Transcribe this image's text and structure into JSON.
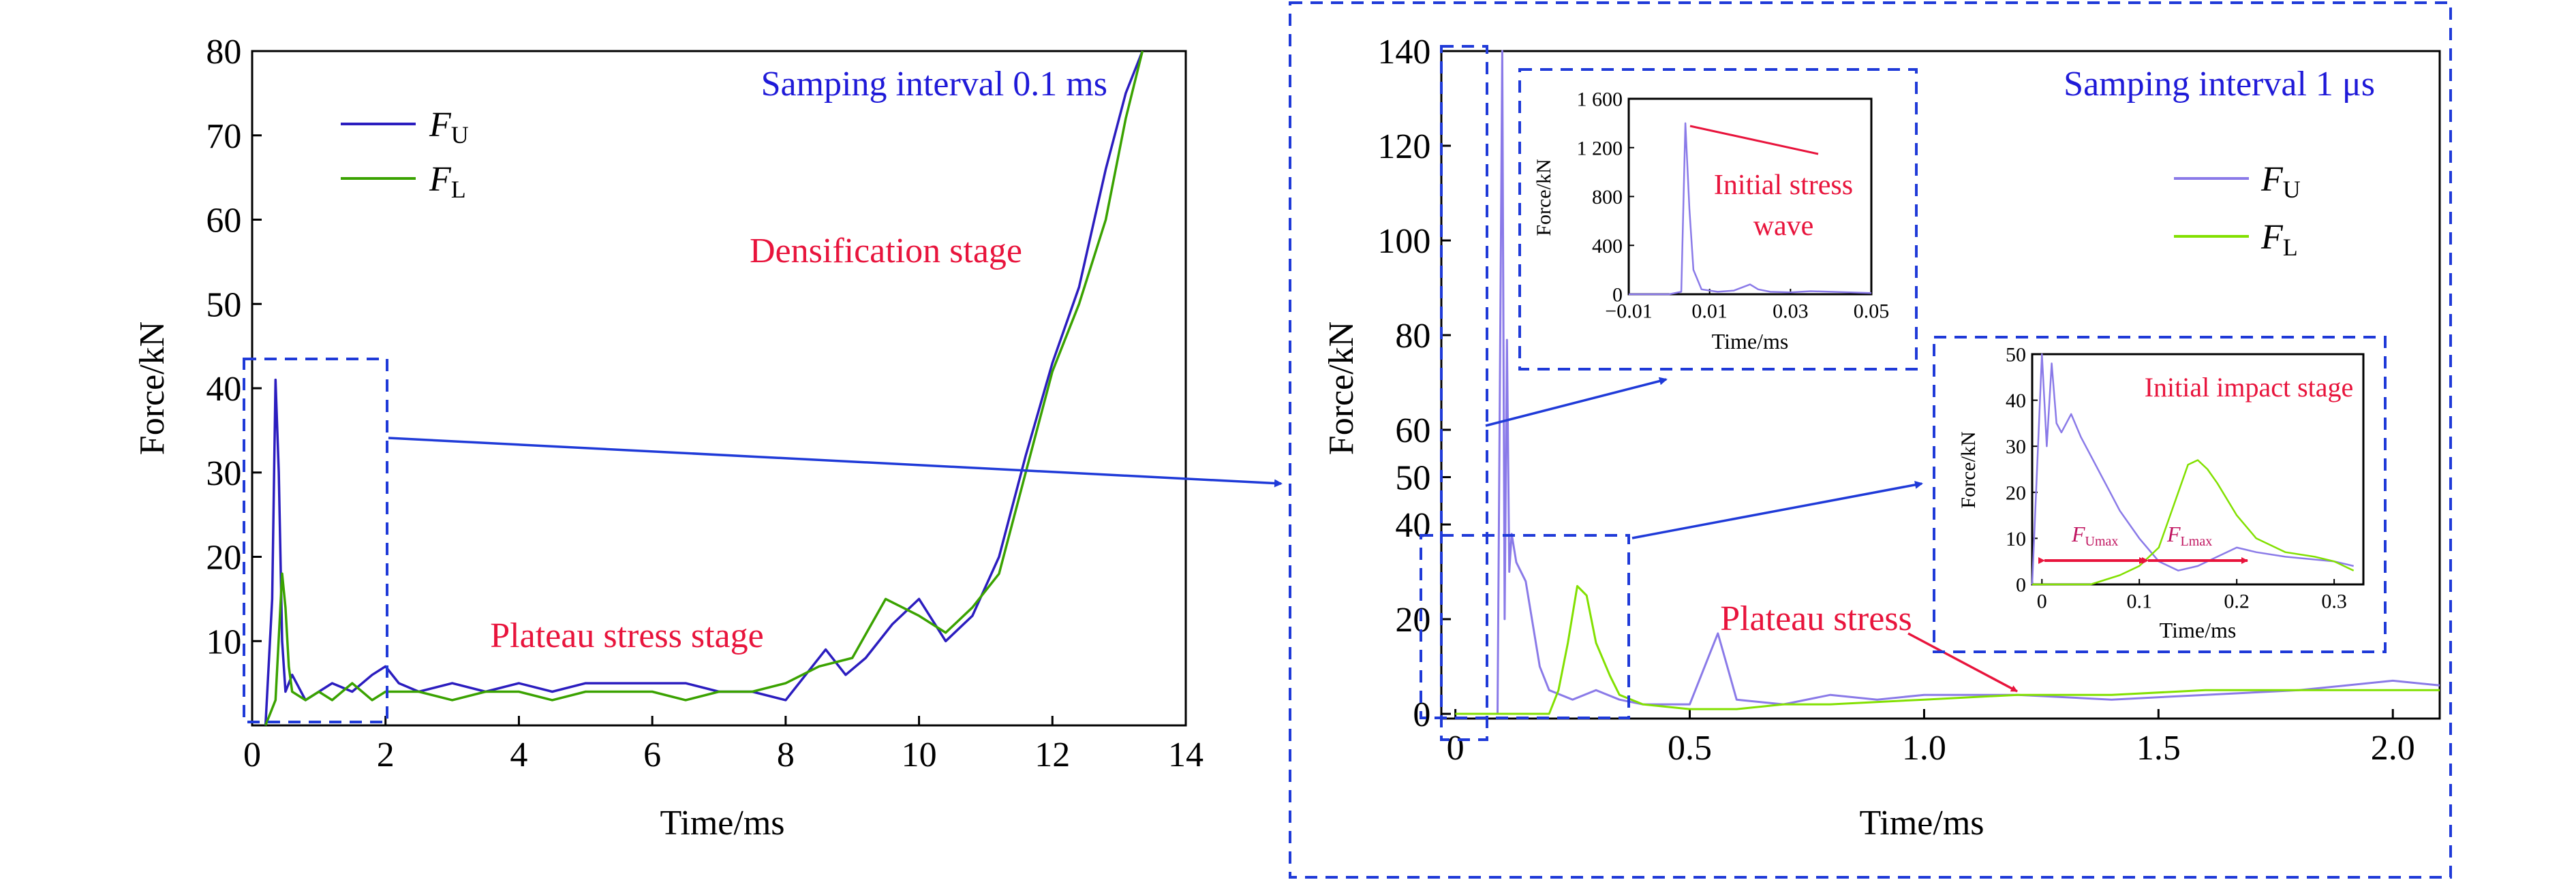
{
  "figure": {
    "arrows_color": "#1f3ad8",
    "frame_color": "#1f3ad8",
    "series_colors": {
      "upper_left": "#2b1dbf",
      "lower_left": "#3aa200",
      "upper_right": "#8a7ae8",
      "lower_right": "#82e000"
    },
    "annotation_color": "#e8143c",
    "title_color": "#1f1ad8"
  },
  "chart_data": [
    {
      "id": "left",
      "type": "line",
      "title": "Samping interval 0.1 ms",
      "xlabel": "Time/ms",
      "ylabel": "Force/kN",
      "xlim": [
        0,
        14
      ],
      "ylim": [
        0,
        80
      ],
      "xticks": [
        "0",
        "2",
        "4",
        "6",
        "8",
        "10",
        "12",
        "14"
      ],
      "yticks": [
        "10",
        "20",
        "30",
        "40",
        "50",
        "60",
        "70",
        "80"
      ],
      "legend_position": "top-left",
      "legend": [
        {
          "italic": "F",
          "sub": "U"
        },
        {
          "italic": "F",
          "sub": "L"
        }
      ],
      "annotations": [
        "Densification stage",
        "Plateau stress stage"
      ],
      "series": [
        {
          "name": "FU",
          "x": [
            0.2,
            0.3,
            0.35,
            0.4,
            0.45,
            0.5,
            0.6,
            0.8,
            1.0,
            1.2,
            1.5,
            1.8,
            2.0,
            2.2,
            2.5,
            3.0,
            3.5,
            4.0,
            4.5,
            5.0,
            5.5,
            6.0,
            6.5,
            7.0,
            7.5,
            8.0,
            8.3,
            8.6,
            8.9,
            9.2,
            9.6,
            10.0,
            10.4,
            10.8,
            11.2,
            11.6,
            12.0,
            12.4,
            12.8,
            13.1,
            13.35
          ],
          "y": [
            0,
            15,
            41,
            30,
            10,
            4,
            6,
            3,
            4,
            5,
            4,
            6,
            7,
            5,
            4,
            5,
            4,
            5,
            4,
            5,
            5,
            5,
            5,
            4,
            4,
            3,
            6,
            9,
            6,
            8,
            12,
            15,
            10,
            13,
            20,
            32,
            43,
            52,
            66,
            75,
            80
          ]
        },
        {
          "name": "FL",
          "x": [
            0.2,
            0.35,
            0.45,
            0.5,
            0.55,
            0.6,
            0.8,
            1.0,
            1.2,
            1.5,
            1.8,
            2.0,
            2.5,
            3.0,
            3.5,
            4.0,
            4.5,
            5.0,
            5.5,
            6.0,
            6.5,
            7.0,
            7.5,
            8.0,
            8.5,
            9.0,
            9.5,
            10.0,
            10.4,
            10.8,
            11.2,
            11.6,
            12.0,
            12.4,
            12.8,
            13.1,
            13.35
          ],
          "y": [
            0,
            3,
            18,
            14,
            7,
            4,
            3,
            4,
            3,
            5,
            3,
            4,
            4,
            3,
            4,
            4,
            3,
            4,
            4,
            4,
            3,
            4,
            4,
            5,
            7,
            8,
            15,
            13,
            11,
            14,
            18,
            30,
            42,
            50,
            60,
            72,
            80
          ]
        }
      ]
    },
    {
      "id": "right",
      "type": "line",
      "title": "Samping interval 1 μs",
      "xlabel": "Time/ms",
      "ylabel": "Force/kN",
      "xlim": [
        -0.03,
        2.1
      ],
      "ylim": [
        -1,
        140
      ],
      "xticks": [
        "0",
        "0.5",
        "1.0",
        "1.5",
        "2.0"
      ],
      "yticks": [
        "0",
        "20",
        "40",
        "50",
        "60",
        "80",
        "100",
        "120",
        "140"
      ],
      "legend_position": "right",
      "legend": [
        {
          "italic": "F",
          "sub": "U"
        },
        {
          "italic": "F",
          "sub": "L"
        }
      ],
      "annotations": [
        "Plateau stress"
      ],
      "series": [
        {
          "name": "FU",
          "x": [
            0,
            0.04,
            0.09,
            0.1,
            0.105,
            0.11,
            0.115,
            0.12,
            0.13,
            0.15,
            0.18,
            0.2,
            0.25,
            0.3,
            0.35,
            0.4,
            0.5,
            0.54,
            0.56,
            0.58,
            0.6,
            0.7,
            0.8,
            0.9,
            1.0,
            1.2,
            1.4,
            1.6,
            1.8,
            2.0,
            2.1
          ],
          "y": [
            0,
            0,
            0,
            140,
            20,
            79,
            30,
            38,
            32,
            28,
            10,
            5,
            3,
            5,
            3,
            2,
            2,
            12,
            17,
            10,
            3,
            2,
            4,
            3,
            4,
            4,
            3,
            4,
            5,
            7,
            6
          ]
        },
        {
          "name": "FL",
          "x": [
            0,
            0.1,
            0.2,
            0.22,
            0.24,
            0.26,
            0.28,
            0.3,
            0.33,
            0.35,
            0.4,
            0.5,
            0.6,
            0.7,
            0.8,
            1.0,
            1.2,
            1.4,
            1.6,
            1.8,
            2.0,
            2.1
          ],
          "y": [
            0,
            0,
            0,
            5,
            15,
            27,
            25,
            15,
            8,
            4,
            2,
            1,
            1,
            2,
            2,
            3,
            4,
            4,
            5,
            5,
            5,
            5
          ]
        }
      ]
    },
    {
      "id": "inset1",
      "type": "line",
      "xlabel": "Time/ms",
      "ylabel": "Force/kN",
      "xlim": [
        -0.01,
        0.05
      ],
      "ylim": [
        0,
        1600
      ],
      "xticks": [
        "−0.01",
        "0.01",
        "0.03",
        "0.05"
      ],
      "yticks": [
        "0",
        "400",
        "800",
        "1 200",
        "1 600"
      ],
      "annotations": [
        "Initial stress",
        "wave"
      ],
      "series": [
        {
          "name": "FU",
          "x": [
            -0.01,
            0.0,
            0.003,
            0.004,
            0.005,
            0.006,
            0.008,
            0.012,
            0.016,
            0.02,
            0.022,
            0.025,
            0.03,
            0.035,
            0.05
          ],
          "y": [
            0,
            0,
            20,
            1400,
            700,
            200,
            40,
            20,
            30,
            80,
            40,
            20,
            15,
            25,
            10
          ]
        }
      ]
    },
    {
      "id": "inset2",
      "type": "line",
      "xlabel": "Time/ms",
      "ylabel": "Force/kN",
      "xlim": [
        -0.01,
        0.33
      ],
      "ylim": [
        0,
        50
      ],
      "xticks": [
        "0",
        "0.1",
        "0.2",
        "0.3"
      ],
      "yticks": [
        "0",
        "10",
        "20",
        "30",
        "40",
        "50"
      ],
      "annotations": [
        "Initial impact stage"
      ],
      "labels": [
        {
          "italic": "F",
          "sub": "Umax"
        },
        {
          "italic": "F",
          "sub": "Lmax"
        }
      ],
      "series": [
        {
          "name": "FU",
          "x": [
            -0.01,
            0.0,
            0.005,
            0.01,
            0.015,
            0.02,
            0.03,
            0.04,
            0.05,
            0.06,
            0.07,
            0.08,
            0.1,
            0.12,
            0.14,
            0.16,
            0.18,
            0.2,
            0.22,
            0.25,
            0.3,
            0.32
          ],
          "y": [
            0,
            50,
            30,
            48,
            35,
            33,
            37,
            32,
            28,
            24,
            20,
            16,
            10,
            5,
            3,
            4,
            6,
            8,
            7,
            6,
            5,
            4
          ]
        },
        {
          "name": "FL",
          "x": [
            -0.01,
            0.05,
            0.08,
            0.1,
            0.12,
            0.13,
            0.14,
            0.15,
            0.16,
            0.17,
            0.18,
            0.2,
            0.22,
            0.25,
            0.28,
            0.3,
            0.32
          ],
          "y": [
            0,
            0,
            2,
            4,
            8,
            14,
            20,
            26,
            27,
            25,
            22,
            15,
            10,
            7,
            6,
            5,
            3
          ]
        }
      ]
    }
  ]
}
